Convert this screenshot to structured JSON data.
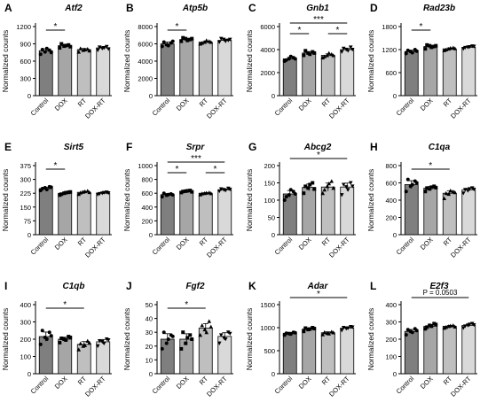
{
  "figure": {
    "ylabel": "Normalized counts",
    "categories": [
      "Control",
      "DOX",
      "RT",
      "DOX-RT"
    ],
    "colors": {
      "Control": "#7f7f7f",
      "DOX": "#a6a6a6",
      "RT": "#bfbfbf",
      "DOX-RT": "#d9d9d9"
    },
    "marker_shapes": {
      "Control": "circle",
      "DOX": "square",
      "RT": "triangle",
      "DOX-RT": "inverted-triangle"
    }
  },
  "chart_data": [
    {
      "type": "bar",
      "panel": "A",
      "title": "Atf2",
      "categories": [
        "Control",
        "DOX",
        "RT",
        "DOX-RT"
      ],
      "values": [
        780,
        870,
        800,
        830
      ],
      "ylim": [
        0,
        1200
      ],
      "yticks": [
        0,
        300,
        600,
        900,
        1200
      ],
      "points": [
        [
          720,
          760,
          790,
          800,
          820,
          750
        ],
        [
          830,
          860,
          880,
          900,
          870,
          850
        ],
        [
          760,
          790,
          810,
          820,
          800,
          780
        ],
        [
          790,
          820,
          850,
          840,
          830,
          810
        ]
      ],
      "significance": [
        {
          "from": 0,
          "to": 1,
          "label": "*"
        }
      ]
    },
    {
      "type": "bar",
      "panel": "B",
      "title": "Atp5b",
      "categories": [
        "Control",
        "DOX",
        "RT",
        "DOX-RT"
      ],
      "values": [
        6000,
        6500,
        6200,
        6400
      ],
      "ylim": [
        0,
        8000
      ],
      "yticks": [
        0,
        2000,
        4000,
        6000,
        8000
      ],
      "points": [
        [
          5700,
          5900,
          6100,
          6200,
          5800,
          6300
        ],
        [
          6300,
          6600,
          6500,
          6700,
          6400,
          6600
        ],
        [
          6000,
          6200,
          6300,
          6100,
          6400,
          6200
        ],
        [
          6200,
          6500,
          6400,
          6600,
          6300,
          6500
        ]
      ],
      "significance": [
        {
          "from": 0,
          "to": 1,
          "label": "*"
        }
      ]
    },
    {
      "type": "bar",
      "panel": "C",
      "title": "Gnb1",
      "categories": [
        "Control",
        "DOX",
        "RT",
        "DOX-RT"
      ],
      "values": [
        3200,
        3700,
        3500,
        4000
      ],
      "ylim": [
        0,
        6000
      ],
      "yticks": [
        0,
        2000,
        4000,
        6000
      ],
      "points": [
        [
          3000,
          3200,
          3300,
          3100,
          3400,
          3200
        ],
        [
          3500,
          3700,
          3800,
          3900,
          3600,
          3700
        ],
        [
          3300,
          3500,
          3600,
          3400,
          3700,
          3500
        ],
        [
          3800,
          4000,
          4200,
          4100,
          3900,
          4000
        ]
      ],
      "significance": [
        {
          "from": 0,
          "to": 1,
          "label": "*"
        },
        {
          "from": 2,
          "to": 3,
          "label": "*"
        },
        {
          "from": 0,
          "to": 3,
          "label": "***"
        }
      ]
    },
    {
      "type": "bar",
      "panel": "D",
      "title": "Rad23b",
      "categories": [
        "Control",
        "DOX",
        "RT",
        "DOX-RT"
      ],
      "values": [
        1150,
        1280,
        1220,
        1260
      ],
      "ylim": [
        0,
        1800
      ],
      "yticks": [
        0,
        600,
        1200,
        1800
      ],
      "points": [
        [
          1100,
          1150,
          1200,
          1180,
          1120,
          1160
        ],
        [
          1220,
          1300,
          1280,
          1320,
          1260,
          1300
        ],
        [
          1180,
          1220,
          1250,
          1200,
          1240,
          1230
        ],
        [
          1220,
          1260,
          1290,
          1250,
          1270,
          1280
        ]
      ],
      "significance": [
        {
          "from": 0,
          "to": 1,
          "label": "*"
        }
      ]
    },
    {
      "type": "bar",
      "panel": "E",
      "title": "Sirt5",
      "categories": [
        "Control",
        "DOX",
        "RT",
        "DOX-RT"
      ],
      "values": [
        250,
        225,
        230,
        225
      ],
      "ylim": [
        0,
        375
      ],
      "yticks": [
        0,
        75,
        150,
        225,
        300,
        375
      ],
      "points": [
        [
          240,
          255,
          260,
          250,
          245,
          258
        ],
        [
          215,
          225,
          230,
          220,
          228,
          232
        ],
        [
          220,
          232,
          238,
          228,
          235,
          230
        ],
        [
          218,
          225,
          230,
          222,
          228,
          226
        ]
      ],
      "significance": [
        {
          "from": 0,
          "to": 1,
          "label": "*"
        }
      ]
    },
    {
      "type": "bar",
      "panel": "F",
      "title": "Srpr",
      "categories": [
        "Control",
        "DOX",
        "RT",
        "DOX-RT"
      ],
      "values": [
        580,
        630,
        600,
        650
      ],
      "ylim": [
        0,
        1000
      ],
      "yticks": [
        0,
        200,
        400,
        600,
        800,
        1000
      ],
      "points": [
        [
          550,
          570,
          590,
          600,
          580,
          575
        ],
        [
          610,
          630,
          640,
          625,
          635,
          620
        ],
        [
          580,
          600,
          610,
          595,
          605,
          598
        ],
        [
          630,
          650,
          670,
          660,
          640,
          655
        ]
      ],
      "significance": [
        {
          "from": 0,
          "to": 1,
          "label": "*"
        },
        {
          "from": 2,
          "to": 3,
          "label": "*"
        },
        {
          "from": 0,
          "to": 3,
          "label": "***"
        }
      ]
    },
    {
      "type": "bar",
      "panel": "G",
      "title": "Abcg2",
      "categories": [
        "Control",
        "DOX",
        "RT",
        "DOX-RT"
      ],
      "values": [
        118,
        137,
        138,
        138
      ],
      "ylim": [
        0,
        200
      ],
      "yticks": [
        0,
        50,
        100,
        150,
        200
      ],
      "points": [
        [
          100,
          115,
          125,
          110,
          130,
          118
        ],
        [
          120,
          135,
          150,
          140,
          145,
          132
        ],
        [
          120,
          140,
          155,
          130,
          148,
          135
        ],
        [
          115,
          138,
          150,
          145,
          130,
          140
        ]
      ],
      "significance": [
        {
          "from": 0,
          "to": 3,
          "label": "*"
        }
      ]
    },
    {
      "type": "bar",
      "panel": "H",
      "title": "C1qa",
      "categories": [
        "Control",
        "DOX",
        "RT",
        "DOX-RT"
      ],
      "values": [
        580,
        540,
        480,
        520
      ],
      "ylim": [
        0,
        800
      ],
      "yticks": [
        0,
        200,
        400,
        600,
        800
      ],
      "points": [
        [
          500,
          560,
          620,
          640,
          580,
          600
        ],
        [
          500,
          530,
          560,
          540,
          550,
          545
        ],
        [
          420,
          470,
          500,
          480,
          510,
          490
        ],
        [
          480,
          510,
          540,
          520,
          530,
          525
        ]
      ],
      "significance": [
        {
          "from": 0,
          "to": 2,
          "label": "*"
        }
      ]
    },
    {
      "type": "bar",
      "panel": "I",
      "title": "C1qb",
      "categories": [
        "Control",
        "DOX",
        "RT",
        "DOX-RT"
      ],
      "values": [
        215,
        200,
        170,
        185
      ],
      "ylim": [
        0,
        400
      ],
      "yticks": [
        0,
        100,
        200,
        300,
        400
      ],
      "points": [
        [
          170,
          210,
          240,
          250,
          200,
          220
        ],
        [
          180,
          200,
          215,
          205,
          195,
          210
        ],
        [
          140,
          160,
          190,
          175,
          165,
          180
        ],
        [
          160,
          185,
          200,
          190,
          175,
          195
        ]
      ],
      "significance": [
        {
          "from": 0,
          "to": 2,
          "label": "*"
        }
      ]
    },
    {
      "type": "bar",
      "panel": "J",
      "title": "Fgf2",
      "categories": [
        "Control",
        "DOX",
        "RT",
        "DOX-RT"
      ],
      "values": [
        25,
        25,
        33,
        27
      ],
      "ylim": [
        0,
        50
      ],
      "yticks": [
        0,
        10,
        20,
        30,
        40,
        50
      ],
      "points": [
        [
          18,
          22,
          28,
          30,
          25,
          27
        ],
        [
          18,
          22,
          28,
          30,
          26,
          25
        ],
        [
          28,
          32,
          38,
          35,
          30,
          34
        ],
        [
          22,
          26,
          30,
          28,
          25,
          29
        ]
      ],
      "significance": [
        {
          "from": 0,
          "to": 2,
          "label": "*"
        }
      ]
    },
    {
      "type": "bar",
      "panel": "K",
      "title": "Adar",
      "categories": [
        "Control",
        "DOX",
        "RT",
        "DOX-RT"
      ],
      "values": [
        880,
        970,
        890,
        990
      ],
      "ylim": [
        0,
        1500
      ],
      "yticks": [
        0,
        500,
        1000,
        1500
      ],
      "points": [
        [
          840,
          870,
          900,
          880,
          860,
          890
        ],
        [
          920,
          960,
          1000,
          990,
          970,
          980
        ],
        [
          850,
          880,
          910,
          900,
          870,
          895
        ],
        [
          940,
          980,
          1020,
          1000,
          990,
          1010
        ]
      ],
      "significance": [
        {
          "from": 0,
          "to": 3,
          "label": "*"
        }
      ]
    },
    {
      "type": "bar",
      "panel": "L",
      "title": "E2f3",
      "categories": [
        "Control",
        "DOX",
        "RT",
        "DOX-RT"
      ],
      "values": [
        245,
        275,
        275,
        280
      ],
      "ylim": [
        0,
        400
      ],
      "yticks": [
        0,
        100,
        200,
        300,
        400
      ],
      "points": [
        [
          225,
          245,
          260,
          255,
          240,
          250
        ],
        [
          260,
          280,
          290,
          270,
          275,
          285
        ],
        [
          265,
          275,
          280,
          270,
          278,
          272
        ],
        [
          265,
          280,
          290,
          275,
          285,
          282
        ]
      ],
      "significance": [
        {
          "from": 0,
          "to": 3,
          "label": "P = 0.0503"
        }
      ]
    }
  ]
}
